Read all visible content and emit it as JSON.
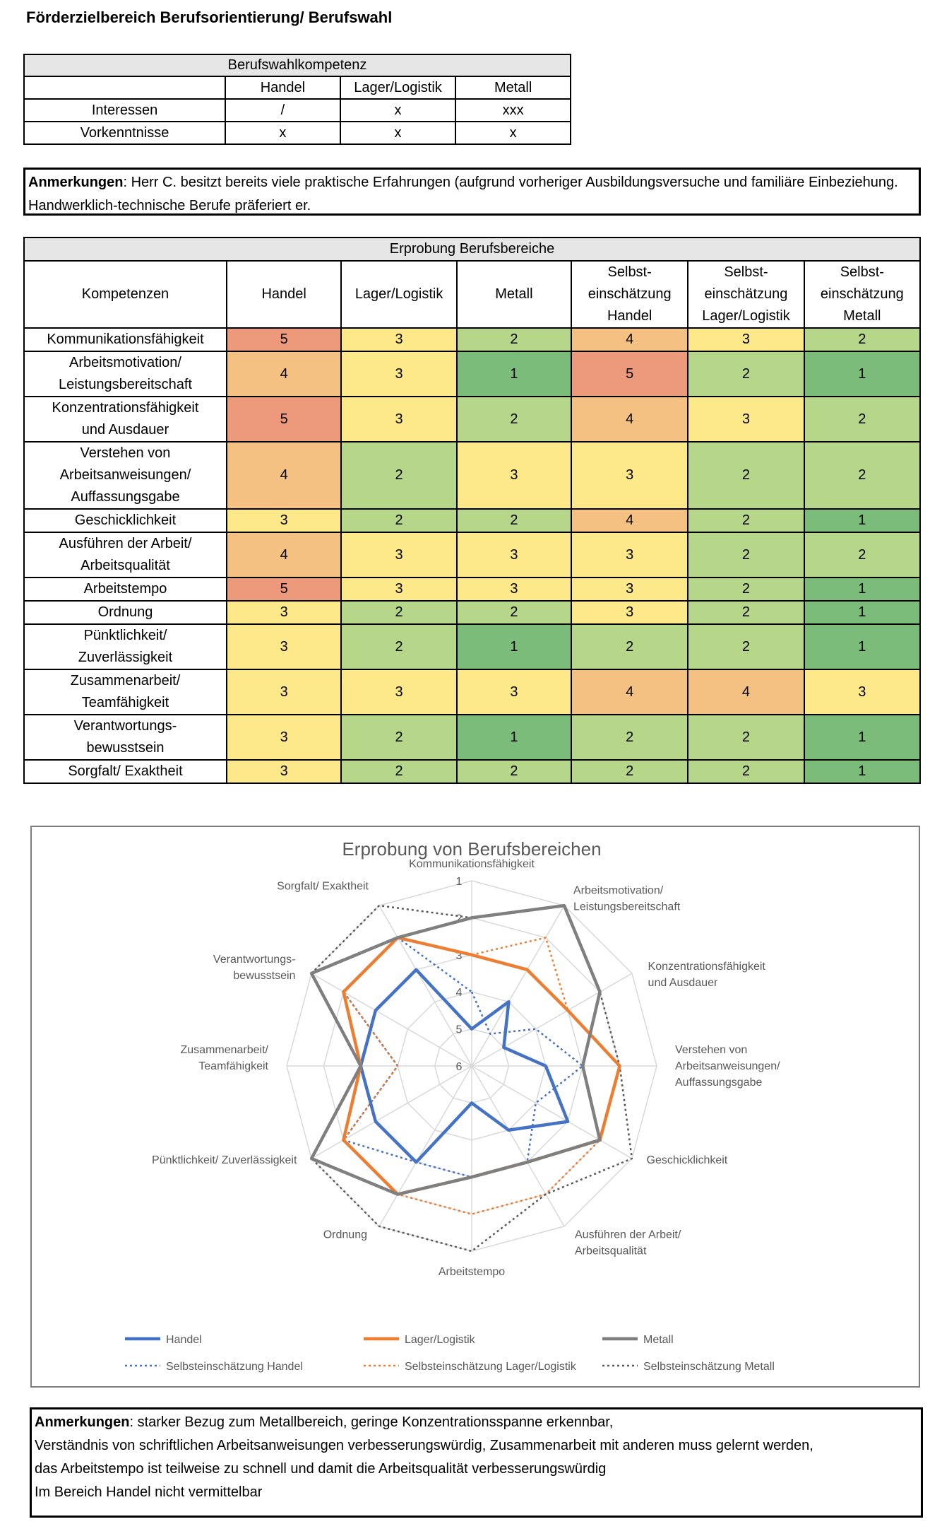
{
  "page_title": "Förderzielbereich Berufsorientierung/ Berufswahl",
  "table1": {
    "title": "Berufswahlkompetenz",
    "headers": [
      "",
      "Handel",
      "Lager/Logistik",
      "Metall"
    ],
    "rows": [
      {
        "label": "Interessen",
        "values": [
          "/",
          "x",
          "xxx"
        ]
      },
      {
        "label": "Vorkenntnisse",
        "values": [
          "x",
          "x",
          "x"
        ]
      }
    ]
  },
  "remark1": {
    "label": "Anmerkungen",
    "text": ": Herr C. besitzt bereits viele praktische Erfahrungen (aufgrund vorheriger Ausbildungsversuche und familiäre Einbeziehung. Handwerklich-technische Berufe präferiert er."
  },
  "table2": {
    "title": "Erprobung Berufsbereiche",
    "headers": [
      "Kompetenzen",
      "Handel",
      "Lager/Logistik",
      "Metall",
      "Selbst-\neinschätzung\nHandel",
      "Selbst-\neinschätzung\nLager/Logistik",
      "Selbst-\neinschätzung\nMetall"
    ],
    "rows": [
      {
        "label": "Kommunikationsfähigkeit",
        "values": [
          5,
          3,
          2,
          4,
          3,
          2
        ]
      },
      {
        "label": "Arbeitsmotivation/\nLeistungsbereitschaft",
        "values": [
          4,
          3,
          1,
          5,
          2,
          1
        ]
      },
      {
        "label": "Konzentrationsfähigkeit\nund Ausdauer",
        "values": [
          5,
          3,
          2,
          4,
          3,
          2
        ]
      },
      {
        "label": "Verstehen von\nArbeitsanweisungen/\nAuffassungsgabe",
        "values": [
          4,
          2,
          3,
          3,
          2,
          2
        ]
      },
      {
        "label": "Geschicklichkeit",
        "values": [
          3,
          2,
          2,
          4,
          2,
          1
        ]
      },
      {
        "label": "Ausführen der Arbeit/\nArbeitsqualität",
        "values": [
          4,
          3,
          3,
          3,
          2,
          2
        ]
      },
      {
        "label": "Arbeitstempo",
        "values": [
          5,
          3,
          3,
          3,
          2,
          1
        ]
      },
      {
        "label": "Ordnung",
        "values": [
          3,
          2,
          2,
          3,
          2,
          1
        ]
      },
      {
        "label": "Pünktlichkeit/\nZuverlässigkeit",
        "values": [
          3,
          2,
          1,
          2,
          2,
          1
        ]
      },
      {
        "label": "Zusammenarbeit/\nTeamfähigkeit",
        "values": [
          3,
          3,
          3,
          4,
          4,
          3
        ]
      },
      {
        "label": "Verantwortungs-\nbewusstsein",
        "values": [
          3,
          2,
          1,
          2,
          2,
          1
        ]
      },
      {
        "label": "Sorgfalt/ Exaktheit",
        "values": [
          3,
          2,
          2,
          2,
          2,
          1
        ]
      }
    ],
    "score_colors": {
      "1": "#7bbc7b",
      "2": "#b6d68a",
      "3": "#fde88a",
      "4": "#f5c183",
      "5": "#ec9a7b"
    }
  },
  "chart_data": {
    "type": "radar",
    "title": "Erprobung von Berufsbereichen",
    "categories": [
      "Kommunikationsfähigkeit",
      "Arbeitsmotivation/\nLeistungsbereitschaft",
      "Konzentrationsfähigkeit\nund Ausdauer",
      "Verstehen von\nArbeitsanweisungen/\nAuffassungsgabe",
      "Geschicklichkeit",
      "Ausführen der Arbeit/\nArbeitsqualität",
      "Arbeitstempo",
      "Ordnung",
      "Pünktlichkeit/ Zuverlässigkeit",
      "Zusammenarbeit/\nTeamfähigkeit",
      "Verantwortungs-\nbewusstsein",
      "Sorgfalt/ Exaktheit"
    ],
    "axis_ticks": [
      1,
      2,
      3,
      4,
      5,
      6
    ],
    "axis_range": [
      1,
      6
    ],
    "axis_reversed": true,
    "legend_position": "bottom",
    "series": [
      {
        "name": "Handel",
        "values": [
          5,
          4,
          5,
          4,
          3,
          4,
          5,
          3,
          3,
          3,
          3,
          3
        ],
        "color": "#4472c4",
        "style": "solid"
      },
      {
        "name": "Lager/Logistik",
        "values": [
          3,
          3,
          3,
          2,
          2,
          3,
          3,
          2,
          2,
          3,
          2,
          2
        ],
        "color": "#ed7d31",
        "style": "solid"
      },
      {
        "name": "Metall",
        "values": [
          2,
          1,
          2,
          3,
          2,
          3,
          3,
          2,
          1,
          3,
          1,
          2
        ],
        "color": "#7f7f7f",
        "style": "solid"
      },
      {
        "name": "Selbsteinschätzung Handel",
        "values": [
          4,
          5,
          4,
          3,
          4,
          3,
          3,
          3,
          2,
          4,
          2,
          2
        ],
        "color": "#4472c4",
        "style": "dotted"
      },
      {
        "name": "Selbsteinschätzung Lager/Logistik",
        "values": [
          3,
          2,
          3,
          2,
          2,
          2,
          2,
          2,
          2,
          4,
          2,
          2
        ],
        "color": "#ed7d31",
        "style": "dotted"
      },
      {
        "name": "Selbsteinschätzung Metall",
        "values": [
          2,
          1,
          2,
          2,
          1,
          2,
          1,
          1,
          1,
          3,
          1,
          1
        ],
        "color": "#595959",
        "style": "dotted"
      }
    ]
  },
  "remark2": {
    "label": "Anmerkungen",
    "lines": [
      ": starker Bezug zum Metallbereich, geringe Konzentrationsspanne erkennbar,",
      "Verständnis von schriftlichen Arbeitsanweisungen verbesserungswürdig, Zusammenarbeit mit anderen muss gelernt werden,",
      "das Arbeitstempo ist teilweise zu schnell und damit die Arbeitsqualität verbesserungswürdig",
      "Im Bereich Handel nicht vermittelbar"
    ]
  }
}
